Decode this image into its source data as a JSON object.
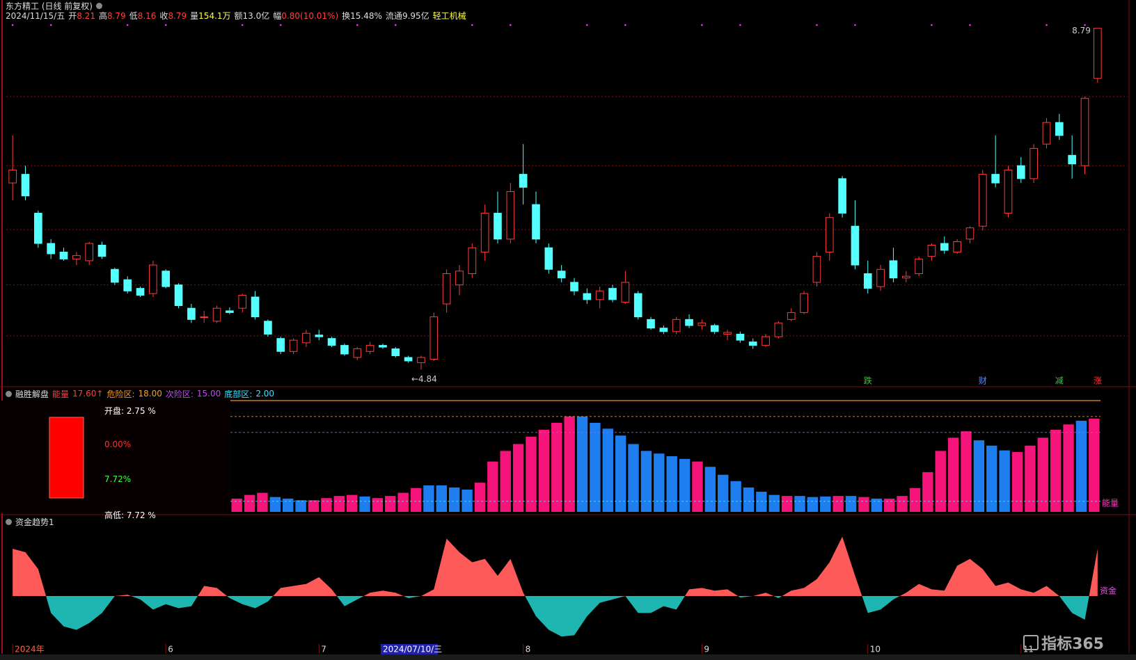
{
  "header": {
    "title": "东方精工 (日线 前复权)",
    "date": "2024/11/15/五",
    "items": [
      {
        "label": "开",
        "value": "8.21",
        "color": "#ff4040"
      },
      {
        "label": "高",
        "value": "8.79",
        "color": "#ff4040"
      },
      {
        "label": "低",
        "value": "8.16",
        "color": "#ff4040"
      },
      {
        "label": "收",
        "value": "8.79",
        "color": "#ff4040"
      },
      {
        "label": "量",
        "value": "154.1万",
        "color": "#ffff40"
      },
      {
        "label": "额",
        "value": "13.0亿",
        "color": "#dddddd"
      },
      {
        "label": "幅",
        "value": "0.80(10.01%)",
        "color": "#ff4040"
      },
      {
        "label": "换",
        "value": "15.48%",
        "color": "#dddddd"
      },
      {
        "label": "流通",
        "value": "9.95亿",
        "color": "#dddddd"
      }
    ],
    "sector": "轻工机械"
  },
  "watermark": "指标365",
  "chart_data": [
    {
      "type": "candlestick",
      "up_color": "#ff3b3b",
      "down_color": "#54ffff",
      "ylim": [
        4.65,
        8.86
      ],
      "yticks": [
        5.23,
        5.82,
        6.46,
        7.2,
        8.0
      ],
      "grid": true,
      "categories": [
        "2024年",
        null,
        null,
        null,
        null,
        null,
        null,
        null,
        null,
        null,
        null,
        null,
        "6",
        null,
        null,
        null,
        null,
        null,
        null,
        null,
        null,
        null,
        null,
        null,
        "7",
        null,
        null,
        null,
        null,
        null,
        null,
        null,
        null,
        null,
        null,
        null,
        null,
        null,
        null,
        null,
        "8",
        null,
        null,
        null,
        null,
        null,
        null,
        null,
        null,
        null,
        null,
        null,
        null,
        null,
        "9",
        null,
        null,
        null,
        null,
        null,
        null,
        null,
        null,
        null,
        null,
        null,
        null,
        "10",
        null,
        null,
        null,
        null,
        null,
        null,
        null,
        null,
        null,
        null,
        null,
        "11",
        null,
        null,
        null,
        null,
        null,
        null
      ],
      "cursor": {
        "index": 29,
        "label": "2024/07/10/三"
      },
      "ohlc": [
        [
          7.0,
          7.55,
          6.8,
          7.15
        ],
        [
          7.1,
          7.2,
          6.8,
          6.85
        ],
        [
          6.65,
          6.68,
          6.25,
          6.3
        ],
        [
          6.3,
          6.35,
          6.12,
          6.18
        ],
        [
          6.2,
          6.25,
          6.1,
          6.12
        ],
        [
          6.12,
          6.2,
          6.05,
          6.16
        ],
        [
          6.1,
          6.32,
          6.05,
          6.3
        ],
        [
          6.28,
          6.32,
          6.12,
          6.15
        ],
        [
          6.0,
          6.02,
          5.82,
          5.85
        ],
        [
          5.88,
          5.92,
          5.72,
          5.75
        ],
        [
          5.78,
          5.8,
          5.68,
          5.7
        ],
        [
          5.72,
          6.1,
          5.68,
          6.05
        ],
        [
          5.98,
          6.0,
          5.78,
          5.8
        ],
        [
          5.82,
          5.84,
          5.55,
          5.58
        ],
        [
          5.55,
          5.6,
          5.38,
          5.42
        ],
        [
          5.45,
          5.52,
          5.38,
          5.45
        ],
        [
          5.4,
          5.58,
          5.38,
          5.55
        ],
        [
          5.52,
          5.56,
          5.48,
          5.5
        ],
        [
          5.55,
          5.72,
          5.5,
          5.7
        ],
        [
          5.68,
          5.75,
          5.42,
          5.45
        ],
        [
          5.4,
          5.42,
          5.22,
          5.25
        ],
        [
          5.2,
          5.22,
          5.02,
          5.05
        ],
        [
          5.05,
          5.2,
          5.02,
          5.18
        ],
        [
          5.15,
          5.3,
          5.1,
          5.26
        ],
        [
          5.24,
          5.3,
          5.18,
          5.22
        ],
        [
          5.2,
          5.22,
          5.1,
          5.12
        ],
        [
          5.12,
          5.14,
          5.0,
          5.02
        ],
        [
          4.98,
          5.1,
          4.95,
          5.08
        ],
        [
          5.05,
          5.16,
          5.02,
          5.12
        ],
        [
          5.12,
          5.14,
          5.08,
          5.1
        ],
        [
          5.08,
          5.1,
          4.98,
          5.0
        ],
        [
          4.98,
          5.0,
          4.92,
          4.94
        ],
        [
          4.92,
          5.0,
          4.84,
          4.98
        ],
        [
          4.96,
          5.5,
          4.94,
          5.45
        ],
        [
          5.6,
          6.0,
          5.5,
          5.95
        ],
        [
          5.82,
          6.05,
          5.7,
          5.98
        ],
        [
          5.95,
          6.3,
          5.9,
          6.25
        ],
        [
          6.2,
          6.75,
          6.1,
          6.65
        ],
        [
          6.65,
          6.9,
          6.3,
          6.35
        ],
        [
          6.35,
          7.0,
          6.3,
          6.9
        ],
        [
          7.1,
          7.45,
          6.75,
          6.95
        ],
        [
          6.75,
          6.9,
          6.3,
          6.35
        ],
        [
          6.25,
          6.3,
          5.95,
          6.0
        ],
        [
          5.98,
          6.05,
          5.85,
          5.9
        ],
        [
          5.85,
          5.9,
          5.7,
          5.75
        ],
        [
          5.72,
          5.78,
          5.6,
          5.65
        ],
        [
          5.65,
          5.8,
          5.55,
          5.75
        ],
        [
          5.78,
          5.82,
          5.62,
          5.65
        ],
        [
          5.62,
          5.98,
          5.6,
          5.85
        ],
        [
          5.72,
          5.75,
          5.42,
          5.45
        ],
        [
          5.42,
          5.45,
          5.3,
          5.32
        ],
        [
          5.32,
          5.35,
          5.25,
          5.28
        ],
        [
          5.28,
          5.45,
          5.25,
          5.42
        ],
        [
          5.42,
          5.48,
          5.32,
          5.35
        ],
        [
          5.35,
          5.42,
          5.3,
          5.38
        ],
        [
          5.35,
          5.37,
          5.25,
          5.28
        ],
        [
          5.25,
          5.3,
          5.18,
          5.27
        ],
        [
          5.25,
          5.28,
          5.15,
          5.18
        ],
        [
          5.16,
          5.2,
          5.08,
          5.12
        ],
        [
          5.12,
          5.25,
          5.1,
          5.22
        ],
        [
          5.22,
          5.4,
          5.2,
          5.38
        ],
        [
          5.42,
          5.55,
          5.4,
          5.5
        ],
        [
          5.5,
          5.75,
          5.48,
          5.72
        ],
        [
          5.85,
          6.2,
          5.8,
          6.15
        ],
        [
          6.2,
          6.65,
          6.1,
          6.6
        ],
        [
          7.05,
          7.08,
          6.6,
          6.65
        ],
        [
          6.5,
          6.8,
          6.0,
          6.05
        ],
        [
          5.95,
          6.1,
          5.72,
          5.78
        ],
        [
          5.8,
          6.05,
          5.75,
          6.0
        ],
        [
          6.1,
          6.25,
          5.85,
          5.9
        ],
        [
          5.9,
          5.98,
          5.85,
          5.92
        ],
        [
          5.95,
          6.15,
          5.92,
          6.12
        ],
        [
          6.15,
          6.3,
          6.1,
          6.28
        ],
        [
          6.3,
          6.38,
          6.18,
          6.22
        ],
        [
          6.2,
          6.35,
          6.18,
          6.32
        ],
        [
          6.35,
          6.5,
          6.3,
          6.48
        ],
        [
          6.5,
          7.15,
          6.45,
          7.1
        ],
        [
          7.1,
          7.55,
          6.95,
          7.0
        ],
        [
          6.65,
          7.2,
          6.6,
          7.15
        ],
        [
          7.2,
          7.3,
          7.0,
          7.05
        ],
        [
          7.05,
          7.45,
          7.0,
          7.4
        ],
        [
          7.45,
          7.75,
          7.4,
          7.7
        ],
        [
          7.7,
          7.8,
          7.5,
          7.55
        ],
        [
          7.32,
          7.55,
          7.05,
          7.22
        ],
        [
          7.2,
          8.0,
          7.1,
          7.98
        ],
        [
          8.21,
          8.79,
          8.16,
          8.79
        ]
      ],
      "annotations": [
        {
          "text": "8.79",
          "index": 85
        },
        {
          "text": "←4.84",
          "index": 32
        }
      ],
      "signals": [
        {
          "text": "跌",
          "index": 67,
          "color": "#33cc33"
        },
        {
          "text": "财",
          "index": 76,
          "color": "#5a8cff"
        },
        {
          "text": "减",
          "index": 82,
          "color": "#33cc33"
        },
        {
          "text": "涨",
          "index": 85,
          "color": "#ff3b3b"
        }
      ]
    },
    {
      "type": "bar",
      "title": "融胜解盘",
      "energy": {
        "label": "能量",
        "text": "17.60↑"
      },
      "axis_label": "能量",
      "ylim": [
        0,
        21
      ],
      "levels": [
        {
          "label": "危险区:",
          "value": 18,
          "value_label": "18.00",
          "color": "#ff9a1a"
        },
        {
          "label": "次险区:",
          "value": 15,
          "value_label": "15.00",
          "color": "#d040ff"
        },
        {
          "label": "底部区:",
          "value": 2,
          "value_label": "2.00",
          "color": "#40e0ff"
        }
      ],
      "info": [
        {
          "text": "开盘: 2.75 %",
          "color": "#ffffff"
        },
        {
          "text": "0.00%",
          "color": "#ff3030"
        },
        {
          "text": "7.72%",
          "color": "#40ff40"
        },
        {
          "text": "高低: 7.72 %",
          "color": "#ffffff"
        }
      ],
      "values": [
        2.5,
        3.2,
        3.6,
        2.8,
        2.5,
        2.2,
        2.2,
        2.6,
        3.0,
        3.2,
        2.9,
        2.6,
        3.0,
        3.6,
        4.5,
        5.0,
        5.0,
        4.6,
        4.2,
        5.5,
        9.5,
        11.5,
        12.8,
        14.2,
        15.5,
        16.8,
        18.0,
        18.0,
        16.8,
        15.7,
        14.4,
        12.8,
        11.5,
        11.0,
        10.5,
        10.0,
        9.5,
        8.5,
        7.0,
        5.8,
        4.6,
        3.8,
        3.2,
        3.0,
        3.0,
        2.8,
        2.9,
        3.0,
        3.0,
        2.8,
        2.5,
        2.5,
        3.0,
        4.5,
        7.5,
        11.5,
        14.0,
        15.2,
        13.5,
        12.5,
        11.6,
        11.3,
        12.5,
        14.0,
        15.5,
        16.5,
        17.2,
        17.6
      ],
      "colors": [
        "#f5157a",
        "#f5157a",
        "#f5157a",
        "#1e7ef0",
        "#1e7ef0",
        "#1e7ef0",
        "#f5157a",
        "#f5157a",
        "#f5157a",
        "#f5157a",
        "#1e7ef0",
        "#f5157a",
        "#f5157a",
        "#f5157a",
        "#f5157a",
        "#1e7ef0",
        "#1e7ef0",
        "#1e7ef0",
        "#1e7ef0",
        "#f5157a",
        "#f5157a",
        "#f5157a",
        "#f5157a",
        "#f5157a",
        "#f5157a",
        "#f5157a",
        "#f5157a",
        "#1e7ef0",
        "#1e7ef0",
        "#1e7ef0",
        "#1e7ef0",
        "#1e7ef0",
        "#1e7ef0",
        "#1e7ef0",
        "#1e7ef0",
        "#1e7ef0",
        "#f5157a",
        "#1e7ef0",
        "#1e7ef0",
        "#1e7ef0",
        "#1e7ef0",
        "#1e7ef0",
        "#1e7ef0",
        "#f5157a",
        "#1e7ef0",
        "#1e7ef0",
        "#1e7ef0",
        "#f5157a",
        "#1e7ef0",
        "#f5157a",
        "#1e7ef0",
        "#f5157a",
        "#f5157a",
        "#f5157a",
        "#f5157a",
        "#f5157a",
        "#f5157a",
        "#f5157a",
        "#1e7ef0",
        "#1e7ef0",
        "#1e7ef0",
        "#f5157a",
        "#f5157a",
        "#f5157a",
        "#f5157a",
        "#f5157a",
        "#1e7ef0",
        "#f5157a"
      ]
    },
    {
      "type": "area",
      "title": "资金趋势1",
      "axis_label": "资金",
      "ylim": [
        -70,
        100
      ],
      "pos_color": "#ff5a5a",
      "neg_color": "#1fb5b0",
      "values": [
        70,
        65,
        40,
        -25,
        -45,
        -50,
        -40,
        -25,
        0,
        2,
        -5,
        -20,
        -12,
        -18,
        -15,
        15,
        12,
        -3,
        -12,
        -18,
        -8,
        12,
        15,
        18,
        28,
        10,
        -15,
        -5,
        5,
        8,
        5,
        -3,
        0,
        10,
        85,
        65,
        50,
        55,
        30,
        55,
        5,
        -30,
        -50,
        -60,
        -58,
        -30,
        -10,
        -5,
        0,
        -25,
        -25,
        -15,
        -20,
        10,
        12,
        8,
        10,
        -2,
        0,
        5,
        -3,
        8,
        12,
        25,
        50,
        88,
        30,
        -25,
        -20,
        -5,
        5,
        18,
        10,
        8,
        45,
        55,
        40,
        15,
        20,
        10,
        5,
        15,
        0,
        -25,
        -35,
        70
      ]
    }
  ]
}
